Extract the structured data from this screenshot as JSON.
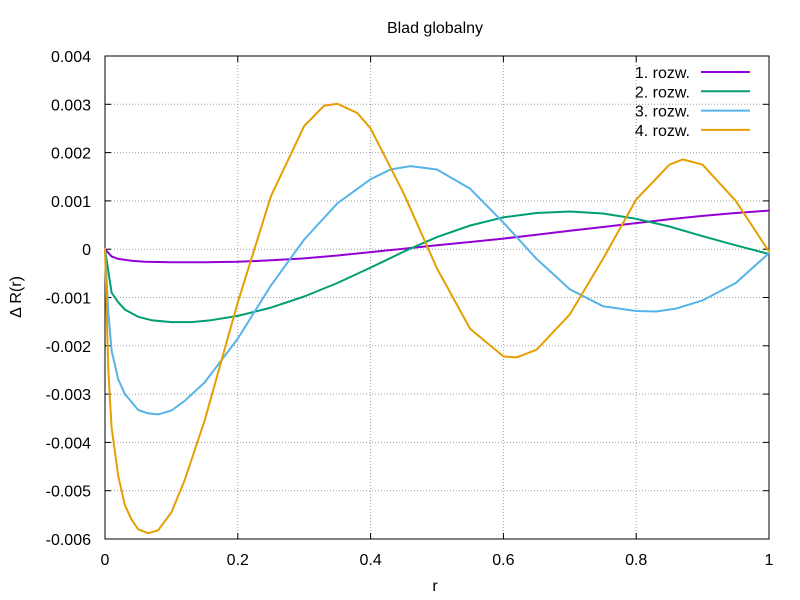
{
  "chart_data": {
    "type": "line",
    "title": "Blad globalny",
    "xlabel": "r",
    "ylabel": "Δ R(r)",
    "xlim": [
      0,
      1
    ],
    "ylim": [
      -0.006,
      0.004
    ],
    "x_ticks": [
      "0",
      "0.2",
      "0.4",
      "0.6",
      "0.8",
      "1"
    ],
    "y_ticks": [
      "0.004",
      "0.003",
      "0.002",
      "0.001",
      "0",
      "-0.001",
      "-0.002",
      "-0.003",
      "-0.004",
      "-0.005",
      "-0.006"
    ],
    "grid": true,
    "legend_position": "top-right",
    "series": [
      {
        "name": "1. rozw.",
        "color": "#9400d3",
        "x": [
          0,
          0.01,
          0.02,
          0.04,
          0.06,
          0.1,
          0.15,
          0.2,
          0.25,
          0.3,
          0.35,
          0.4,
          0.45,
          0.5,
          0.55,
          0.6,
          0.65,
          0.7,
          0.75,
          0.8,
          0.85,
          0.9,
          0.95,
          1.0
        ],
        "y": [
          0,
          -0.00015,
          -0.0002,
          -0.00024,
          -0.00026,
          -0.00027,
          -0.00027,
          -0.00026,
          -0.00023,
          -0.00019,
          -0.00013,
          -6e-05,
          1e-05,
          8e-05,
          0.00015,
          0.00022,
          0.0003,
          0.00038,
          0.00046,
          0.00054,
          0.00062,
          0.00069,
          0.00075,
          0.0008
        ]
      },
      {
        "name": "2. rozw.",
        "color": "#009e73",
        "x": [
          0,
          0.01,
          0.02,
          0.03,
          0.05,
          0.07,
          0.1,
          0.13,
          0.16,
          0.2,
          0.25,
          0.3,
          0.35,
          0.4,
          0.45,
          0.5,
          0.55,
          0.6,
          0.65,
          0.7,
          0.75,
          0.8,
          0.85,
          0.9,
          0.95,
          1.0
        ],
        "y": [
          0,
          -0.0009,
          -0.0011,
          -0.00125,
          -0.0014,
          -0.00147,
          -0.00151,
          -0.00151,
          -0.00147,
          -0.00138,
          -0.00121,
          -0.00098,
          -0.0007,
          -0.00038,
          -5e-05,
          0.00025,
          0.00049,
          0.00066,
          0.00075,
          0.00078,
          0.00074,
          0.00063,
          0.00047,
          0.00027,
          8e-05,
          -0.0001
        ]
      },
      {
        "name": "3. rozw.",
        "color": "#56b4e9",
        "x": [
          0,
          0.005,
          0.01,
          0.02,
          0.03,
          0.05,
          0.065,
          0.08,
          0.1,
          0.12,
          0.15,
          0.2,
          0.25,
          0.3,
          0.35,
          0.4,
          0.43,
          0.46,
          0.5,
          0.55,
          0.6,
          0.65,
          0.7,
          0.75,
          0.8,
          0.83,
          0.86,
          0.9,
          0.95,
          1.0
        ],
        "y": [
          0,
          -0.0013,
          -0.0021,
          -0.0027,
          -0.003,
          -0.00333,
          -0.0034,
          -0.00342,
          -0.00334,
          -0.00314,
          -0.00276,
          -0.00185,
          -0.00075,
          0.0002,
          0.00095,
          0.00145,
          0.00165,
          0.00172,
          0.00165,
          0.00125,
          0.00055,
          -0.0002,
          -0.00083,
          -0.00118,
          -0.00128,
          -0.00129,
          -0.00123,
          -0.00106,
          -0.0007,
          -8e-05
        ]
      },
      {
        "name": "4. rozw.",
        "color": "#e69f00",
        "x": [
          0,
          0.005,
          0.01,
          0.02,
          0.03,
          0.04,
          0.05,
          0.065,
          0.08,
          0.1,
          0.12,
          0.15,
          0.2,
          0.25,
          0.3,
          0.33,
          0.35,
          0.38,
          0.4,
          0.45,
          0.5,
          0.55,
          0.6,
          0.62,
          0.65,
          0.7,
          0.75,
          0.8,
          0.85,
          0.87,
          0.9,
          0.95,
          1.0
        ],
        "y": [
          0,
          -0.0025,
          -0.0037,
          -0.0047,
          -0.0053,
          -0.0056,
          -0.0058,
          -0.00588,
          -0.00582,
          -0.00545,
          -0.00478,
          -0.00355,
          -0.0011,
          0.0011,
          0.00255,
          0.00297,
          0.00301,
          0.00282,
          0.0025,
          0.00115,
          -0.0004,
          -0.00165,
          -0.00222,
          -0.00224,
          -0.00208,
          -0.00135,
          -0.0002,
          0.00103,
          0.00175,
          0.00186,
          0.00175,
          0.001,
          -5e-05
        ]
      }
    ]
  }
}
